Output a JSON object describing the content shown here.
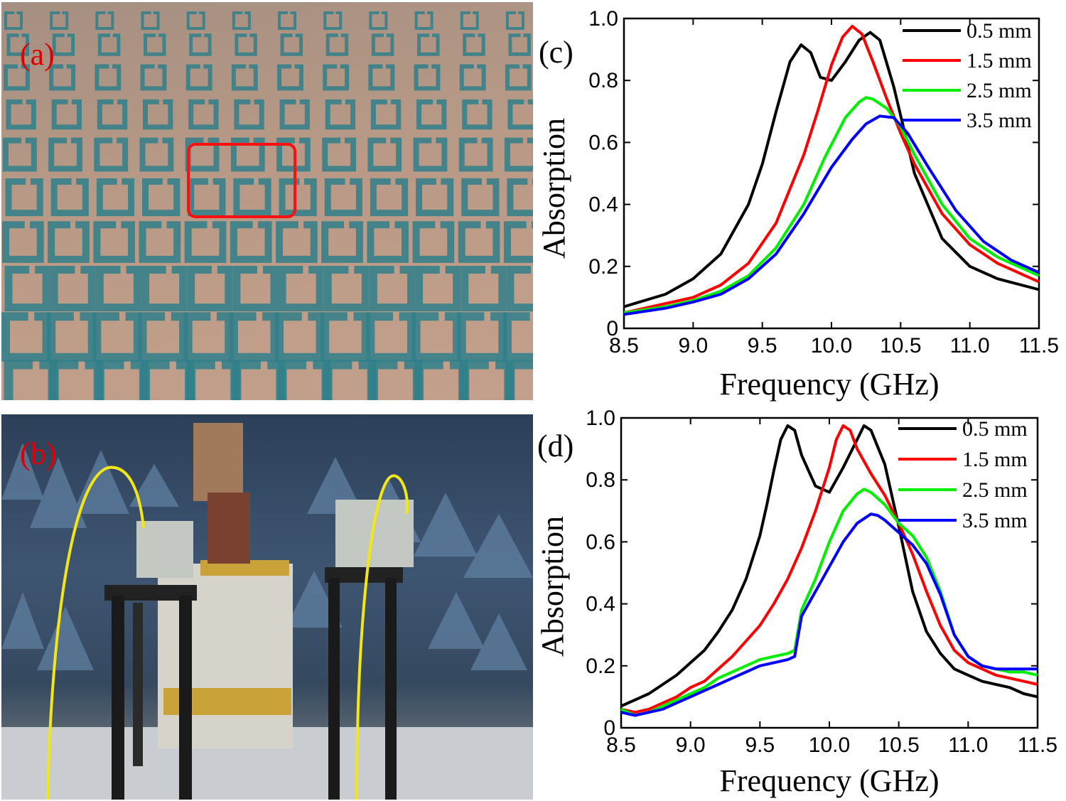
{
  "panels": {
    "a": {
      "label": "(a)"
    },
    "b": {
      "label": "(b)"
    }
  },
  "chart_data": [
    {
      "panel_label": "(c)",
      "type": "line",
      "title": "",
      "xlabel": "Frequency (GHz)",
      "ylabel": "Absorption",
      "xlim": [
        8.5,
        11.5
      ],
      "ylim": [
        0,
        1.0
      ],
      "xticks": [
        "8.5",
        "9.0",
        "9.5",
        "10.0",
        "10.5",
        "11.0",
        "11.5"
      ],
      "yticks": [
        "0",
        "0.2",
        "0.4",
        "0.6",
        "0.8",
        "1.0"
      ],
      "legend_position": "top-right",
      "series": [
        {
          "name": "0.5 mm",
          "color": "#000000",
          "x": [
            8.5,
            8.8,
            9.0,
            9.2,
            9.4,
            9.5,
            9.6,
            9.7,
            9.78,
            9.85,
            9.92,
            10.0,
            10.1,
            10.2,
            10.28,
            10.35,
            10.45,
            10.6,
            10.8,
            11.0,
            11.2,
            11.5
          ],
          "y": [
            0.07,
            0.11,
            0.16,
            0.24,
            0.4,
            0.53,
            0.7,
            0.86,
            0.915,
            0.89,
            0.81,
            0.8,
            0.86,
            0.93,
            0.955,
            0.93,
            0.78,
            0.5,
            0.29,
            0.2,
            0.16,
            0.125
          ]
        },
        {
          "name": "1.5 mm",
          "color": "#ff0000",
          "x": [
            8.5,
            8.8,
            9.0,
            9.2,
            9.4,
            9.6,
            9.8,
            9.9,
            10.0,
            10.08,
            10.15,
            10.22,
            10.3,
            10.4,
            10.5,
            10.6,
            10.8,
            11.0,
            11.2,
            11.5
          ],
          "y": [
            0.05,
            0.08,
            0.1,
            0.14,
            0.21,
            0.34,
            0.56,
            0.7,
            0.85,
            0.94,
            0.975,
            0.95,
            0.86,
            0.74,
            0.63,
            0.53,
            0.37,
            0.27,
            0.21,
            0.15
          ]
        },
        {
          "name": "2.5 mm",
          "color": "#00ee00",
          "x": [
            8.5,
            8.8,
            9.0,
            9.2,
            9.4,
            9.6,
            9.8,
            9.95,
            10.1,
            10.2,
            10.25,
            10.3,
            10.4,
            10.5,
            10.6,
            10.8,
            11.0,
            11.2,
            11.5
          ],
          "y": [
            0.05,
            0.07,
            0.09,
            0.12,
            0.17,
            0.26,
            0.4,
            0.55,
            0.68,
            0.73,
            0.745,
            0.74,
            0.71,
            0.65,
            0.56,
            0.4,
            0.29,
            0.23,
            0.17
          ]
        },
        {
          "name": "3.5 mm",
          "color": "#0000ff",
          "x": [
            8.5,
            8.8,
            9.0,
            9.2,
            9.4,
            9.6,
            9.8,
            10.0,
            10.15,
            10.25,
            10.35,
            10.45,
            10.55,
            10.7,
            10.9,
            11.1,
            11.3,
            11.5
          ],
          "y": [
            0.045,
            0.065,
            0.085,
            0.11,
            0.16,
            0.24,
            0.37,
            0.52,
            0.61,
            0.66,
            0.685,
            0.68,
            0.63,
            0.52,
            0.38,
            0.28,
            0.22,
            0.18
          ]
        }
      ]
    },
    {
      "panel_label": "(d)",
      "type": "line",
      "title": "",
      "xlabel": "Frequency (GHz)",
      "ylabel": "Absorption",
      "xlim": [
        8.5,
        11.5
      ],
      "ylim": [
        0,
        1.0
      ],
      "xticks": [
        "8.5",
        "9.0",
        "9.5",
        "10.0",
        "10.5",
        "11.0",
        "11.5"
      ],
      "yticks": [
        "0",
        "0.2",
        "0.4",
        "0.6",
        "0.8",
        "1.0"
      ],
      "legend_position": "top-right",
      "series": [
        {
          "name": "0.5 mm",
          "color": "#000000",
          "x": [
            8.5,
            8.6,
            8.7,
            8.8,
            8.9,
            9.0,
            9.1,
            9.2,
            9.3,
            9.4,
            9.5,
            9.55,
            9.6,
            9.65,
            9.7,
            9.75,
            9.8,
            9.9,
            10.0,
            10.1,
            10.2,
            10.25,
            10.3,
            10.4,
            10.5,
            10.6,
            10.7,
            10.8,
            10.9,
            11.0,
            11.1,
            11.2,
            11.3,
            11.4,
            11.5
          ],
          "y": [
            0.07,
            0.09,
            0.11,
            0.14,
            0.17,
            0.21,
            0.25,
            0.31,
            0.38,
            0.48,
            0.62,
            0.72,
            0.83,
            0.93,
            0.975,
            0.96,
            0.88,
            0.78,
            0.76,
            0.84,
            0.93,
            0.975,
            0.96,
            0.85,
            0.65,
            0.44,
            0.31,
            0.24,
            0.19,
            0.17,
            0.15,
            0.14,
            0.13,
            0.11,
            0.1
          ]
        },
        {
          "name": "1.5 mm",
          "color": "#ff0000",
          "x": [
            8.5,
            8.6,
            8.7,
            8.8,
            8.9,
            9.0,
            9.1,
            9.2,
            9.3,
            9.4,
            9.5,
            9.6,
            9.7,
            9.8,
            9.9,
            10.0,
            10.05,
            10.1,
            10.15,
            10.2,
            10.3,
            10.4,
            10.5,
            10.6,
            10.7,
            10.8,
            10.9,
            11.0,
            11.1,
            11.2,
            11.3,
            11.4,
            11.5
          ],
          "y": [
            0.06,
            0.05,
            0.06,
            0.08,
            0.1,
            0.13,
            0.15,
            0.19,
            0.23,
            0.28,
            0.33,
            0.4,
            0.48,
            0.58,
            0.7,
            0.84,
            0.93,
            0.975,
            0.96,
            0.9,
            0.82,
            0.75,
            0.66,
            0.56,
            0.44,
            0.33,
            0.25,
            0.21,
            0.19,
            0.17,
            0.16,
            0.15,
            0.14
          ]
        },
        {
          "name": "2.5 mm",
          "color": "#00ee00",
          "x": [
            8.5,
            8.6,
            8.7,
            8.8,
            8.9,
            9.0,
            9.1,
            9.2,
            9.3,
            9.4,
            9.5,
            9.6,
            9.7,
            9.75,
            9.8,
            9.9,
            10.0,
            10.1,
            10.2,
            10.25,
            10.3,
            10.4,
            10.5,
            10.6,
            10.7,
            10.8,
            10.9,
            11.0,
            11.1,
            11.2,
            11.3,
            11.4,
            11.5
          ],
          "y": [
            0.06,
            0.04,
            0.05,
            0.07,
            0.09,
            0.11,
            0.13,
            0.16,
            0.18,
            0.2,
            0.22,
            0.23,
            0.24,
            0.25,
            0.38,
            0.48,
            0.6,
            0.7,
            0.755,
            0.77,
            0.76,
            0.72,
            0.66,
            0.62,
            0.55,
            0.44,
            0.3,
            0.23,
            0.2,
            0.19,
            0.18,
            0.18,
            0.17
          ]
        },
        {
          "name": "3.5 mm",
          "color": "#0000ff",
          "x": [
            8.5,
            8.6,
            8.7,
            8.8,
            8.9,
            9.0,
            9.1,
            9.2,
            9.3,
            9.4,
            9.5,
            9.6,
            9.7,
            9.75,
            9.8,
            9.9,
            10.0,
            10.1,
            10.2,
            10.3,
            10.35,
            10.4,
            10.5,
            10.6,
            10.7,
            10.8,
            10.9,
            11.0,
            11.1,
            11.2,
            11.3,
            11.4,
            11.5
          ],
          "y": [
            0.05,
            0.04,
            0.05,
            0.06,
            0.08,
            0.1,
            0.12,
            0.14,
            0.16,
            0.18,
            0.2,
            0.21,
            0.22,
            0.23,
            0.36,
            0.44,
            0.52,
            0.6,
            0.66,
            0.69,
            0.685,
            0.67,
            0.63,
            0.59,
            0.53,
            0.43,
            0.3,
            0.23,
            0.2,
            0.19,
            0.19,
            0.19,
            0.19
          ]
        }
      ]
    }
  ]
}
